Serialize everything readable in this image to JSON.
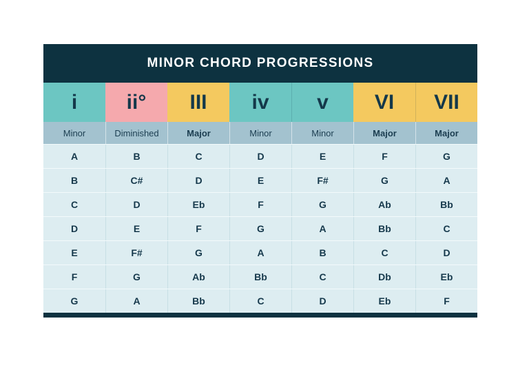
{
  "title": "MINOR CHORD PROGRESSIONS",
  "colors": {
    "navy": "#0d3240",
    "teal": "#6cc6c2",
    "pink": "#f5a9ad",
    "yellow": "#f4c95f",
    "quality_bg": "#a3c2cf",
    "row_bg": "#ddedf1",
    "ink": "#14384a"
  },
  "chart_data": {
    "type": "table",
    "title": "MINOR CHORD PROGRESSIONS",
    "columns": [
      {
        "numeral": "i",
        "quality": "Minor",
        "accent": "teal"
      },
      {
        "numeral": "ii°",
        "quality": "Diminished",
        "accent": "pink"
      },
      {
        "numeral": "III",
        "quality": "Major",
        "accent": "yellow"
      },
      {
        "numeral": "iv",
        "quality": "Minor",
        "accent": "teal"
      },
      {
        "numeral": "v",
        "quality": "Minor",
        "accent": "teal"
      },
      {
        "numeral": "VI",
        "quality": "Major",
        "accent": "yellow"
      },
      {
        "numeral": "VII",
        "quality": "Major",
        "accent": "yellow"
      }
    ],
    "rows": [
      [
        "A",
        "B",
        "C",
        "D",
        "E",
        "F",
        "G"
      ],
      [
        "B",
        "C#",
        "D",
        "E",
        "F#",
        "G",
        "A"
      ],
      [
        "C",
        "D",
        "Eb",
        "F",
        "G",
        "Ab",
        "Bb"
      ],
      [
        "D",
        "E",
        "F",
        "G",
        "A",
        "Bb",
        "C"
      ],
      [
        "E",
        "F#",
        "G",
        "A",
        "B",
        "C",
        "D"
      ],
      [
        "F",
        "G",
        "Ab",
        "Bb",
        "C",
        "Db",
        "Eb"
      ],
      [
        "G",
        "A",
        "Bb",
        "C",
        "D",
        "Eb",
        "F"
      ]
    ]
  }
}
